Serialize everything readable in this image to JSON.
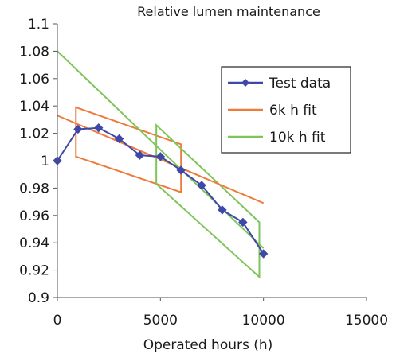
{
  "chart_data": {
    "type": "line",
    "title": "Relative lumen maintenance",
    "xlabel": "Operated hours (h)",
    "ylabel": "",
    "xlim": [
      0,
      15000
    ],
    "ylim": [
      0.9,
      1.1
    ],
    "xticks": [
      0,
      5000,
      10000,
      15000
    ],
    "xtick_labels": [
      "0",
      "5000",
      "10000",
      "15000"
    ],
    "yticks": [
      0.9,
      0.92,
      0.94,
      0.96,
      0.98,
      1.0,
      1.02,
      1.04,
      1.06,
      1.08,
      1.1
    ],
    "ytick_labels": [
      "0.9",
      "0.92",
      "0.94",
      "0.96",
      "0.98",
      "1",
      "1.02",
      "1.04",
      "1.06",
      "1.08",
      "1.1"
    ],
    "grid": false,
    "legend_position": "top-right",
    "series": [
      {
        "name": "Test data",
        "color": "#3f48a8",
        "marker": "diamond",
        "x": [
          0,
          1000,
          2000,
          3000,
          4000,
          5000,
          6000,
          7000,
          8000,
          9000,
          10000
        ],
        "y": [
          1.0,
          1.023,
          1.024,
          1.016,
          1.004,
          1.003,
          0.993,
          0.982,
          0.964,
          0.955,
          0.932
        ]
      },
      {
        "name": "6k h fit",
        "color": "#ef7a3a",
        "marker": "none",
        "x": [
          0,
          10000
        ],
        "y": [
          1.033,
          0.969
        ],
        "band": {
          "x": [
            900,
            900,
            6000,
            6000
          ],
          "y": [
            1.039,
            1.003,
            0.977,
            1.012
          ]
        }
      },
      {
        "name": "10k h fit",
        "color": "#7fc45a",
        "marker": "none",
        "x": [
          0,
          10000
        ],
        "y": [
          1.08,
          0.936
        ],
        "band": {
          "x": [
            4800,
            4800,
            9800,
            9800
          ],
          "y": [
            1.026,
            0.983,
            0.915,
            0.955
          ]
        }
      }
    ]
  }
}
